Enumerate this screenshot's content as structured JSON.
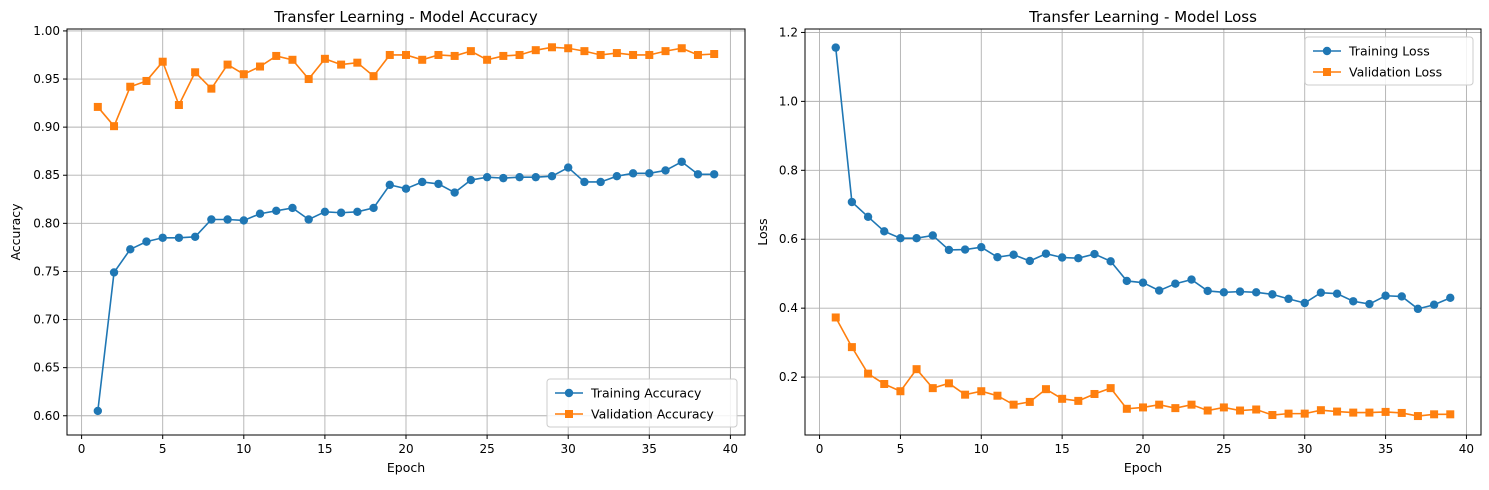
{
  "chart_data": [
    {
      "type": "line",
      "title": "Transfer Learning - Model Accuracy",
      "xlabel": "Epoch",
      "ylabel": "Accuracy",
      "xlim": [
        -0.9,
        40.9
      ],
      "ylim": [
        0.58,
        1.002
      ],
      "xticks": [
        0,
        5,
        10,
        15,
        20,
        25,
        30,
        35,
        40
      ],
      "yticks": [
        0.6,
        0.65,
        0.7,
        0.75,
        0.8,
        0.85,
        0.9,
        0.95,
        1.0
      ],
      "ytick_labels": [
        "0.60",
        "0.65",
        "0.70",
        "0.75",
        "0.80",
        "0.85",
        "0.90",
        "0.95",
        "1.00"
      ],
      "grid": true,
      "legend_position": "lower-right",
      "x": [
        1,
        2,
        3,
        4,
        5,
        6,
        7,
        8,
        9,
        10,
        11,
        12,
        13,
        14,
        15,
        16,
        17,
        18,
        19,
        20,
        21,
        22,
        23,
        24,
        25,
        26,
        27,
        28,
        29,
        30,
        31,
        32,
        33,
        34,
        35,
        36,
        37,
        38,
        39
      ],
      "series": [
        {
          "name": "Training Accuracy",
          "color": "#1f77b4",
          "marker": "circle",
          "values": [
            0.605,
            0.749,
            0.773,
            0.781,
            0.785,
            0.785,
            0.786,
            0.804,
            0.804,
            0.803,
            0.81,
            0.813,
            0.816,
            0.804,
            0.812,
            0.811,
            0.812,
            0.816,
            0.84,
            0.836,
            0.843,
            0.841,
            0.832,
            0.845,
            0.848,
            0.847,
            0.848,
            0.848,
            0.849,
            0.858,
            0.843,
            0.843,
            0.849,
            0.852,
            0.852,
            0.855,
            0.864,
            0.851,
            0.851
          ]
        },
        {
          "name": "Validation Accuracy",
          "color": "#ff7f0e",
          "marker": "square",
          "values": [
            0.921,
            0.901,
            0.942,
            0.948,
            0.968,
            0.923,
            0.957,
            0.94,
            0.965,
            0.955,
            0.963,
            0.974,
            0.97,
            0.95,
            0.971,
            0.965,
            0.967,
            0.953,
            0.975,
            0.975,
            0.97,
            0.975,
            0.974,
            0.979,
            0.97,
            0.974,
            0.975,
            0.98,
            0.983,
            0.982,
            0.979,
            0.975,
            0.977,
            0.975,
            0.975,
            0.979,
            0.982,
            0.975,
            0.976
          ]
        }
      ]
    },
    {
      "type": "line",
      "title": "Transfer Learning - Model Loss",
      "xlabel": "Epoch",
      "ylabel": "Loss",
      "xlim": [
        -0.9,
        40.9
      ],
      "ylim": [
        0.032,
        1.21
      ],
      "xticks": [
        0,
        5,
        10,
        15,
        20,
        25,
        30,
        35,
        40
      ],
      "yticks": [
        0.2,
        0.4,
        0.6,
        0.8,
        1.0,
        1.2
      ],
      "ytick_labels": [
        "0.2",
        "0.4",
        "0.6",
        "0.8",
        "1.0",
        "1.2"
      ],
      "grid": true,
      "legend_position": "upper-right",
      "x": [
        1,
        2,
        3,
        4,
        5,
        6,
        7,
        8,
        9,
        10,
        11,
        12,
        13,
        14,
        15,
        16,
        17,
        18,
        19,
        20,
        21,
        22,
        23,
        24,
        25,
        26,
        27,
        28,
        29,
        30,
        31,
        32,
        33,
        34,
        35,
        36,
        37,
        38,
        39
      ],
      "series": [
        {
          "name": "Training Loss",
          "color": "#1f77b4",
          "marker": "circle",
          "values": [
            1.156,
            0.708,
            0.665,
            0.623,
            0.603,
            0.603,
            0.611,
            0.569,
            0.57,
            0.577,
            0.548,
            0.555,
            0.537,
            0.558,
            0.547,
            0.545,
            0.557,
            0.536,
            0.479,
            0.474,
            0.451,
            0.471,
            0.483,
            0.45,
            0.446,
            0.448,
            0.446,
            0.44,
            0.427,
            0.415,
            0.445,
            0.442,
            0.42,
            0.412,
            0.436,
            0.434,
            0.398,
            0.41,
            0.43
          ]
        },
        {
          "name": "Validation Loss",
          "color": "#ff7f0e",
          "marker": "square",
          "values": [
            0.373,
            0.287,
            0.21,
            0.18,
            0.159,
            0.223,
            0.168,
            0.182,
            0.149,
            0.159,
            0.146,
            0.12,
            0.128,
            0.165,
            0.137,
            0.131,
            0.151,
            0.168,
            0.108,
            0.112,
            0.12,
            0.11,
            0.12,
            0.103,
            0.112,
            0.103,
            0.106,
            0.09,
            0.094,
            0.094,
            0.104,
            0.1,
            0.097,
            0.097,
            0.099,
            0.096,
            0.087,
            0.092,
            0.092
          ]
        }
      ]
    }
  ]
}
